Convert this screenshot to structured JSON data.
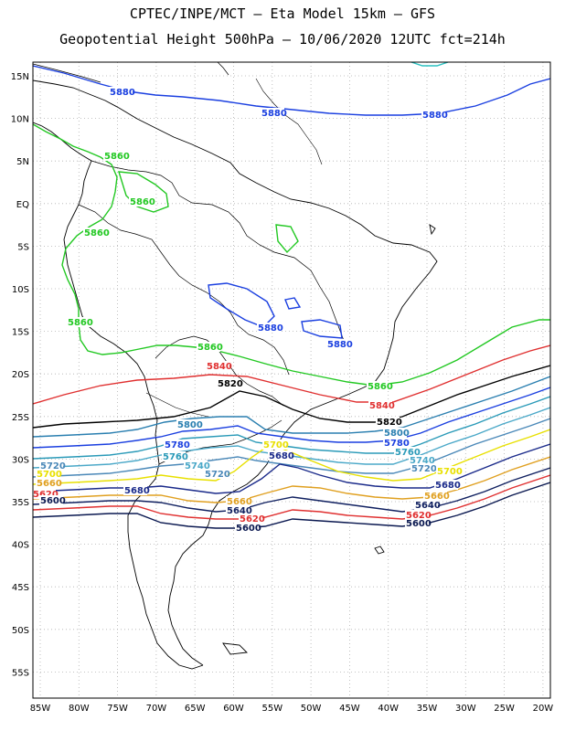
{
  "title_line1": "CPTEC/INPE/MCT –  Eta Model 15km – GFS",
  "title_line2": "Geopotential Height 500hPa – 10/06/2020 12UTC fct=214h",
  "axes": {
    "lat_labels": [
      "15N",
      "10N",
      "5N",
      "EQ",
      "5S",
      "10S",
      "15S",
      "20S",
      "25S",
      "30S",
      "35S",
      "40S",
      "45S",
      "50S",
      "55S"
    ],
    "lon_labels": [
      "85W",
      "80W",
      "75W",
      "70W",
      "65W",
      "60W",
      "55W",
      "50W",
      "45W",
      "40W",
      "35W",
      "30W",
      "25W",
      "20W"
    ]
  },
  "colors": {
    "c5880": "#1a3fe0",
    "c5860": "#22c822",
    "c5840": "#e03030",
    "c5820": "#000000",
    "c5800": "#2a7fb0",
    "c5780": "#1a3fe0",
    "c5760": "#2a9ab8",
    "c5740": "#4aa8c8",
    "c5720": "#4a88b8",
    "c5700": "#e8e000",
    "c5680": "#1a2a8a",
    "c5660": "#e0a020",
    "c5640": "#102060",
    "c5620": "#e03030",
    "c5600": "#0a1850",
    "coast": "#000000"
  },
  "contour_labels": [
    {
      "id": "5880-a",
      "text": "5880"
    },
    {
      "id": "5880-b",
      "text": "5880"
    },
    {
      "id": "5880-c",
      "text": "5880"
    },
    {
      "id": "5880-d",
      "text": "5880"
    },
    {
      "id": "5880-e",
      "text": "5880"
    },
    {
      "id": "5860-a",
      "text": "5860"
    },
    {
      "id": "5860-b",
      "text": "5860"
    },
    {
      "id": "5860-c",
      "text": "5860"
    },
    {
      "id": "5860-d",
      "text": "5860"
    },
    {
      "id": "5860-e",
      "text": "5860"
    },
    {
      "id": "5860-f",
      "text": "5860"
    },
    {
      "id": "5840-a",
      "text": "5840"
    },
    {
      "id": "5840-b",
      "text": "5840"
    },
    {
      "id": "5820-a",
      "text": "5820"
    },
    {
      "id": "5820-b",
      "text": "5820"
    },
    {
      "id": "5800-a",
      "text": "5800"
    },
    {
      "id": "5800-b",
      "text": "5800"
    },
    {
      "id": "5780-a",
      "text": "5780"
    },
    {
      "id": "5780-b",
      "text": "5780"
    },
    {
      "id": "5760-a",
      "text": "5760"
    },
    {
      "id": "5760-b",
      "text": "5760"
    },
    {
      "id": "5740-a",
      "text": "5740"
    },
    {
      "id": "5740-b",
      "text": "5740"
    },
    {
      "id": "5720-a",
      "text": "5720"
    },
    {
      "id": "5720-b",
      "text": "5720"
    },
    {
      "id": "5720-c",
      "text": "5720"
    },
    {
      "id": "5700-a",
      "text": "5700"
    },
    {
      "id": "5700-b",
      "text": "5700"
    },
    {
      "id": "5700-c",
      "text": "5700"
    },
    {
      "id": "5680-a",
      "text": "5680"
    },
    {
      "id": "5680-b",
      "text": "5680"
    },
    {
      "id": "5680-c",
      "text": "5680"
    },
    {
      "id": "5660-a",
      "text": "5660"
    },
    {
      "id": "5660-b",
      "text": "5660"
    },
    {
      "id": "5660-c",
      "text": "5660"
    },
    {
      "id": "5640-a",
      "text": "5640"
    },
    {
      "id": "5640-b",
      "text": "5640"
    },
    {
      "id": "5620-a",
      "text": "5620"
    },
    {
      "id": "5620-b",
      "text": "5620"
    },
    {
      "id": "5620-c",
      "text": "5620"
    },
    {
      "id": "5600-a",
      "text": "5600"
    },
    {
      "id": "5600-b",
      "text": "5600"
    },
    {
      "id": "5600-c",
      "text": "5600"
    }
  ]
}
